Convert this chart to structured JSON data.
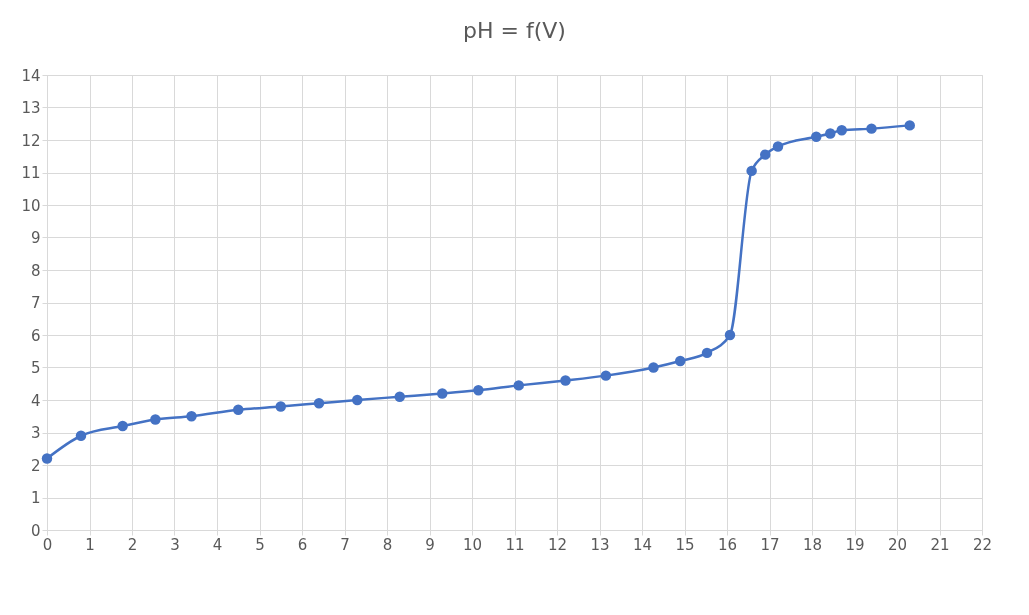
{
  "chart_data": {
    "type": "line",
    "title": "pH = f(V)",
    "x": [
      0,
      0.8,
      1.78,
      2.55,
      3.4,
      4.5,
      5.5,
      6.4,
      7.3,
      8.3,
      9.3,
      10.15,
      11.1,
      12.2,
      13.15,
      14.27,
      14.9,
      15.53,
      16.07,
      16.58,
      16.9,
      17.2,
      18.1,
      18.43,
      18.7,
      19.4,
      20.3
    ],
    "series": [
      {
        "color": "#4472c4",
        "values": [
          2.2,
          2.9,
          3.2,
          3.4,
          3.5,
          3.7,
          3.8,
          3.9,
          4.0,
          4.1,
          4.2,
          4.3,
          4.45,
          4.6,
          4.75,
          5.0,
          5.2,
          5.45,
          6.0,
          11.05,
          11.55,
          11.8,
          12.1,
          12.2,
          12.3,
          12.35,
          12.45
        ]
      }
    ],
    "xlim": [
      0,
      22
    ],
    "xticks": [
      0,
      1,
      2,
      3,
      4,
      5,
      6,
      7,
      8,
      9,
      10,
      11,
      12,
      13,
      14,
      15,
      16,
      17,
      18,
      19,
      20,
      21,
      22
    ],
    "ylim": [
      0,
      14
    ],
    "yticks": [
      0,
      1,
      2,
      3,
      4,
      5,
      6,
      7,
      8,
      9,
      10,
      11,
      12,
      13,
      14
    ],
    "grid": true,
    "marker": "circle",
    "line_style": "solid"
  }
}
